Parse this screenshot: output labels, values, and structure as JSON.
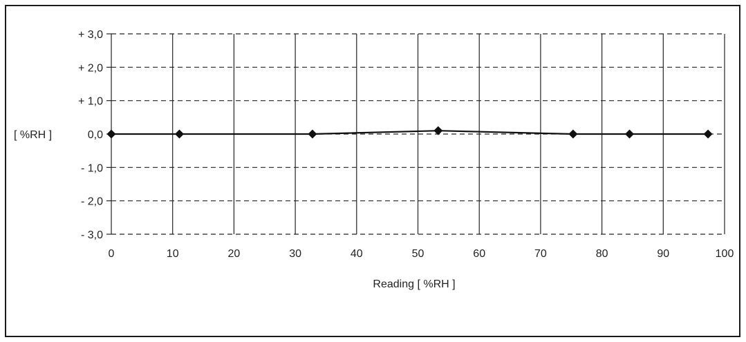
{
  "chart_data": {
    "type": "line",
    "title": "",
    "xlabel": "Reading [ %RH ]",
    "ylabel": "[ %RH ]",
    "xlim": [
      0,
      100
    ],
    "ylim": [
      -3,
      3
    ],
    "x_ticks": [
      0,
      10,
      20,
      30,
      40,
      50,
      60,
      70,
      80,
      90,
      100
    ],
    "x_tick_labels": [
      "0",
      "10",
      "20",
      "30",
      "40",
      "50",
      "60",
      "70",
      "80",
      "90",
      "100"
    ],
    "y_ticks": [
      3,
      2,
      1,
      0,
      -1,
      -2,
      -3
    ],
    "y_tick_labels": [
      "+ 3,0",
      "+ 2,0",
      "+ 1,0",
      "0,0",
      "- 1,0",
      "- 2,0",
      "- 3,0"
    ],
    "grid": {
      "vertical": "solid",
      "horizontal": "dashed"
    },
    "legend": "none",
    "series": [
      {
        "x": [
          0,
          11.1,
          32.8,
          53.3,
          75.3,
          84.5,
          97.3
        ],
        "y": [
          0.0,
          0.0,
          0.0,
          0.1,
          0.0,
          0.0,
          0.0
        ],
        "marker": "diamond",
        "color": "#111111"
      }
    ]
  }
}
